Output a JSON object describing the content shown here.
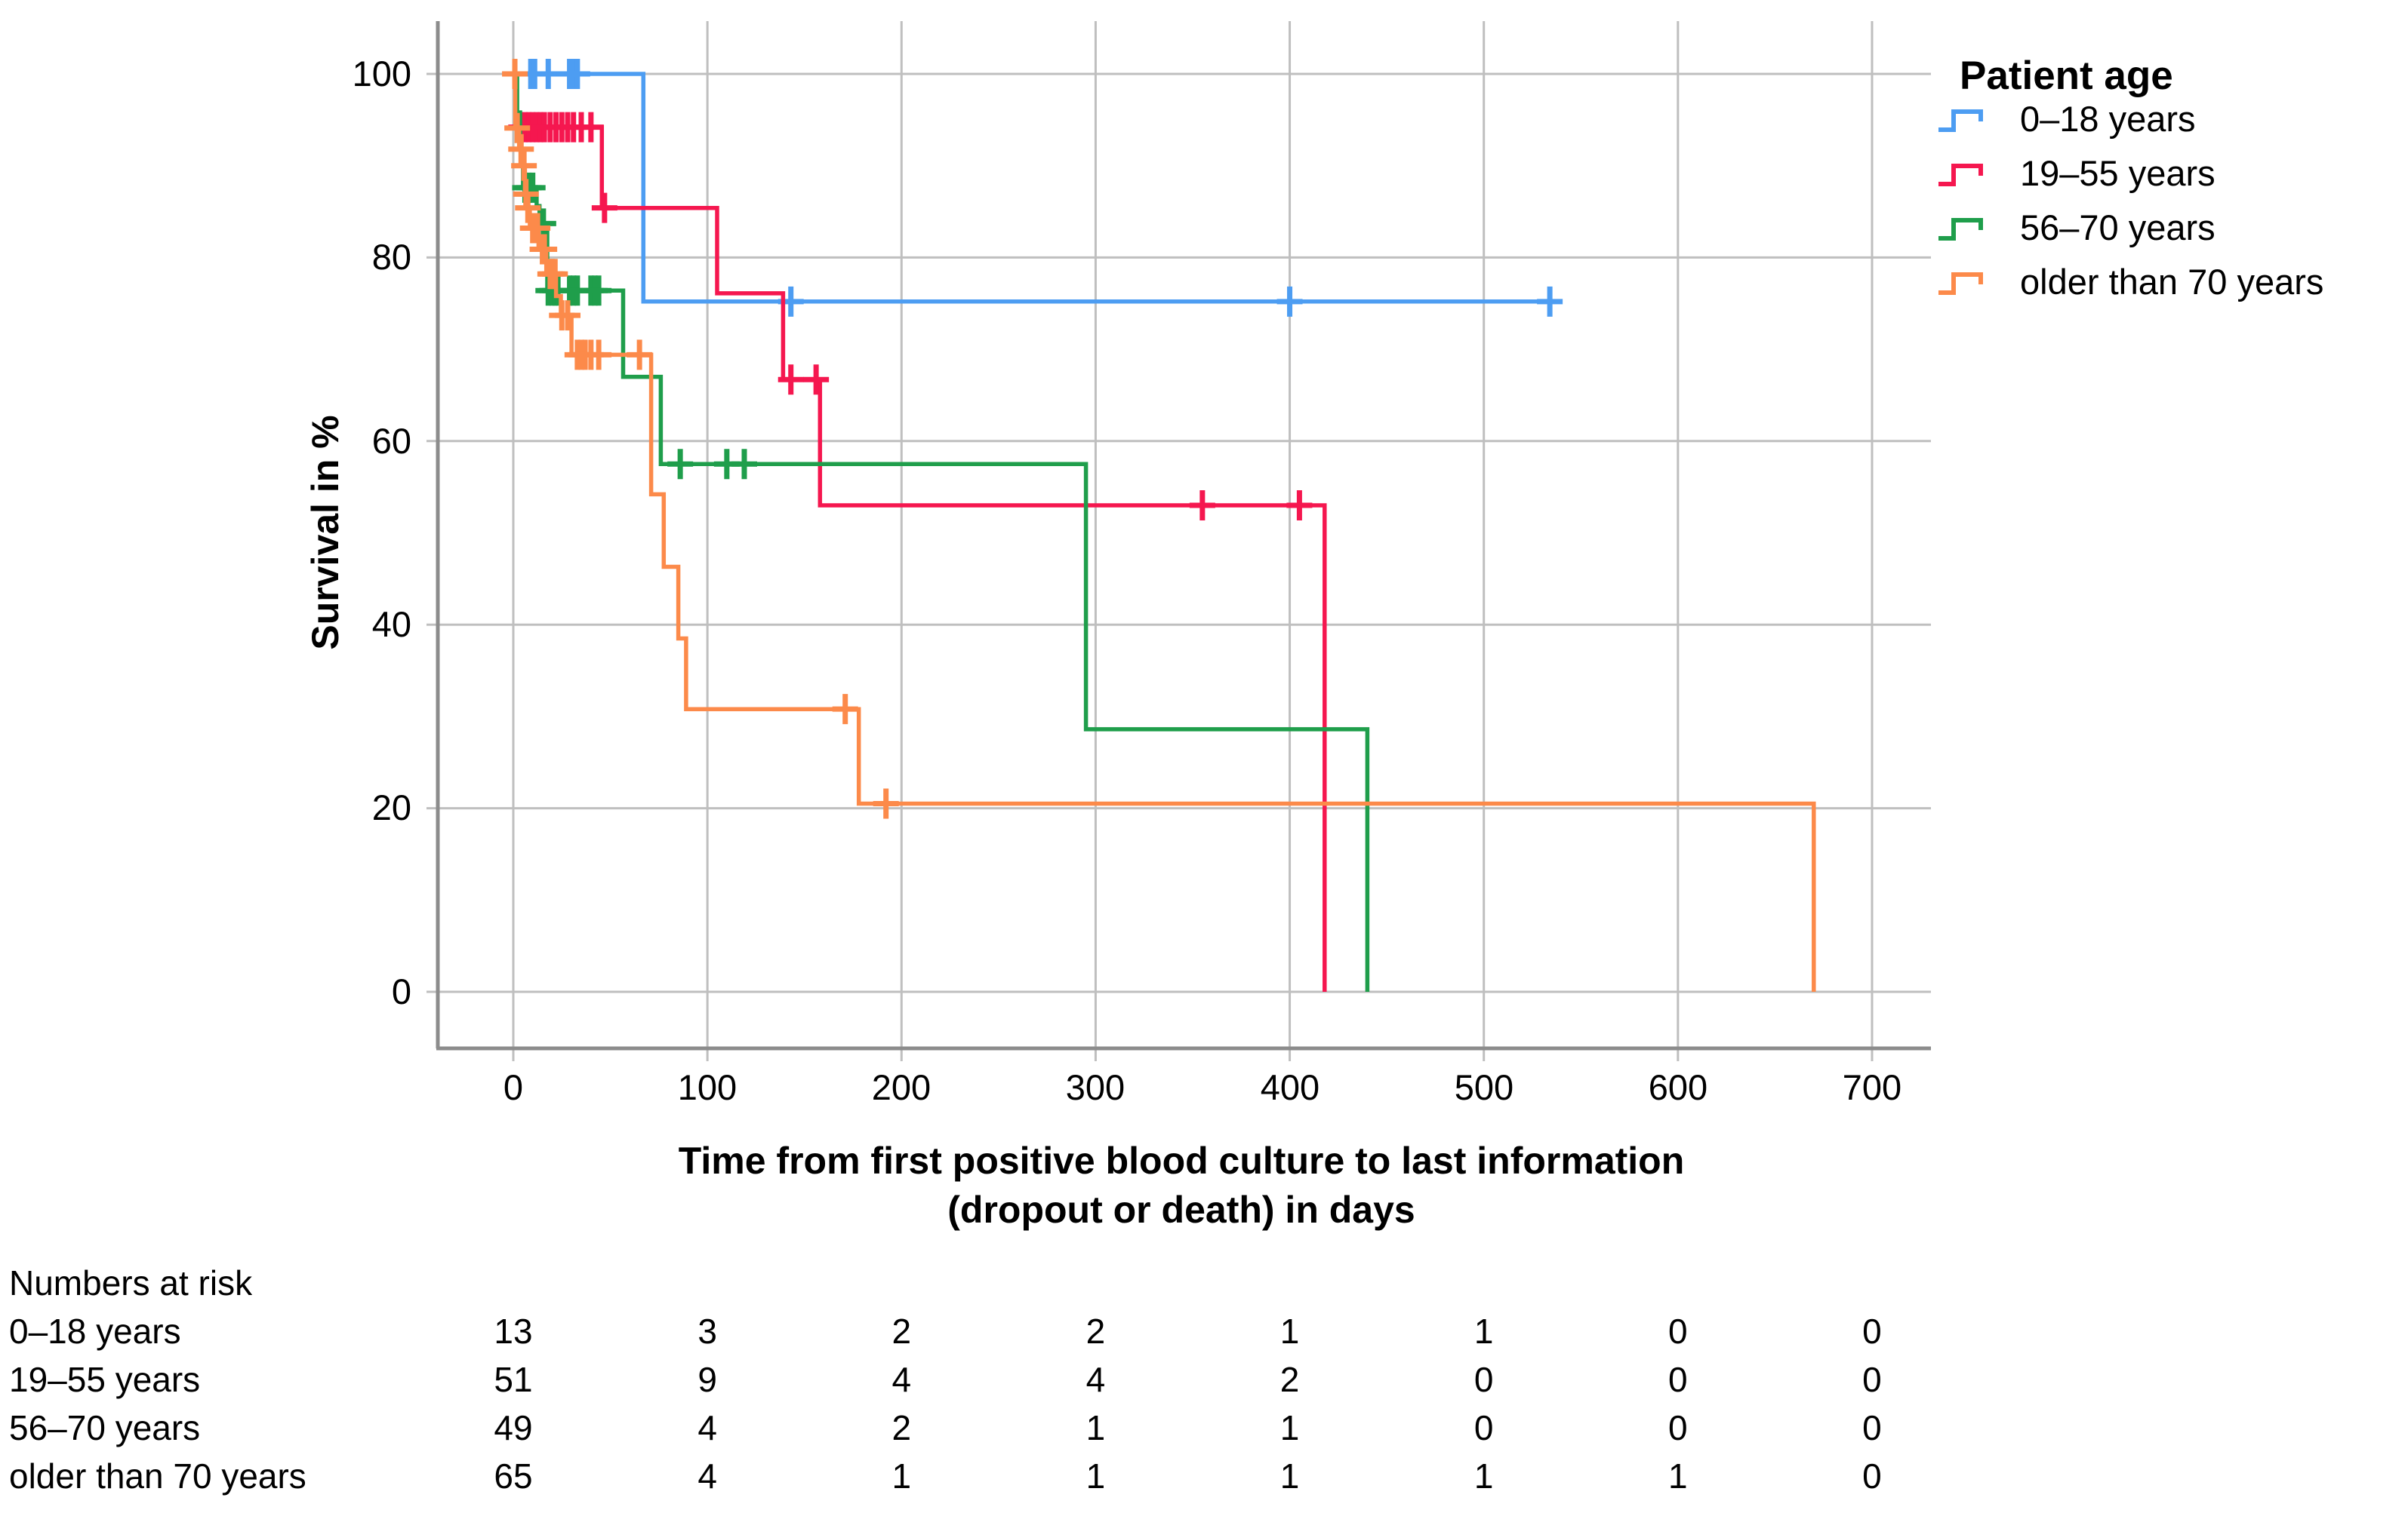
{
  "chart_data": {
    "type": "line",
    "subtype": "kaplan-meier-step-curves",
    "title": "",
    "ylabel": "Survival in %",
    "xlabel_line1": "Time from first positive blood culture to last information",
    "xlabel_line2": "(dropout or death) in days",
    "xlim": [
      0,
      700
    ],
    "ylim": [
      0,
      100
    ],
    "grid": true,
    "legend_position": "top-right",
    "xticks": [
      0,
      100,
      200,
      300,
      400,
      500,
      600,
      700
    ],
    "xtick_labels": [
      "0",
      "100",
      "200",
      "300",
      "400",
      "500",
      "600",
      "700"
    ],
    "yticks": [
      100,
      80,
      60,
      40,
      20,
      0
    ],
    "ytick_labels": [
      "100",
      "80",
      "60",
      "40",
      "20",
      "0"
    ],
    "legend_title": "Patient age",
    "series": [
      {
        "name": "0–18 years",
        "color": "#4d9df2",
        "steps": [
          [
            0,
            100
          ],
          [
            67,
            100
          ],
          [
            67,
            75.2
          ],
          [
            534,
            75.2
          ]
        ],
        "censors": [
          [
            9,
            100
          ],
          [
            11,
            100
          ],
          [
            18,
            100
          ],
          [
            29,
            100
          ],
          [
            31,
            100
          ],
          [
            33,
            100
          ],
          [
            143,
            75.2
          ],
          [
            400,
            75.2
          ],
          [
            534,
            75.2
          ]
        ]
      },
      {
        "name": "19–55 years",
        "color": "#f5174f",
        "steps": [
          [
            0,
            100
          ],
          [
            1.5,
            100
          ],
          [
            1.5,
            94.2
          ],
          [
            45.6,
            94.2
          ],
          [
            45.6,
            85.4
          ],
          [
            105,
            85.4
          ],
          [
            105,
            76.1
          ],
          [
            139,
            76.1
          ],
          [
            139,
            66.7
          ],
          [
            158,
            66.7
          ],
          [
            158,
            53
          ],
          [
            418,
            53
          ],
          [
            418,
            0
          ]
        ],
        "censors": [
          [
            4,
            94.2
          ],
          [
            6,
            94.2
          ],
          [
            8,
            94.2
          ],
          [
            10,
            94.2
          ],
          [
            12,
            94.2
          ],
          [
            14,
            94.2
          ],
          [
            16,
            94.2
          ],
          [
            19,
            94.2
          ],
          [
            22,
            94.2
          ],
          [
            25,
            94.2
          ],
          [
            28,
            94.2
          ],
          [
            31,
            94.2
          ],
          [
            35,
            94.2
          ],
          [
            40,
            94.2
          ],
          [
            47,
            85.4
          ],
          [
            143,
            66.7
          ],
          [
            156,
            66.7
          ],
          [
            355,
            53
          ],
          [
            405,
            53
          ]
        ]
      },
      {
        "name": "56–70 years",
        "color": "#1f9e4b",
        "steps": [
          [
            0,
            100
          ],
          [
            2,
            100
          ],
          [
            2,
            95.8
          ],
          [
            3.5,
            95.8
          ],
          [
            3.5,
            91.8
          ],
          [
            5,
            91.8
          ],
          [
            5,
            87.6
          ],
          [
            12,
            87.6
          ],
          [
            12,
            85.6
          ],
          [
            13.5,
            85.6
          ],
          [
            13.5,
            83.7
          ],
          [
            17.5,
            83.7
          ],
          [
            17.5,
            76.4
          ],
          [
            56.6,
            76.4
          ],
          [
            56.6,
            67
          ],
          [
            76,
            67
          ],
          [
            76,
            57.5
          ],
          [
            295,
            57.5
          ],
          [
            295,
            28.6
          ],
          [
            440,
            28.6
          ],
          [
            440,
            0
          ]
        ],
        "censors": [
          [
            6,
            87.6
          ],
          [
            8,
            87.6
          ],
          [
            10,
            87.6
          ],
          [
            15.5,
            83.7
          ],
          [
            18,
            76.4
          ],
          [
            20,
            76.4
          ],
          [
            21.5,
            76.4
          ],
          [
            23,
            76.4
          ],
          [
            29,
            76.4
          ],
          [
            31,
            76.4
          ],
          [
            33,
            76.4
          ],
          [
            40,
            76.4
          ],
          [
            42,
            76.4
          ],
          [
            44,
            76.4
          ],
          [
            86,
            57.5
          ],
          [
            110,
            57.5
          ],
          [
            119,
            57.5
          ]
        ]
      },
      {
        "name": "older than 70 years",
        "color": "#fc8a4a",
        "steps": [
          [
            0,
            100
          ],
          [
            1,
            100
          ],
          [
            1,
            94.1
          ],
          [
            3,
            94.1
          ],
          [
            3,
            91.8
          ],
          [
            5,
            91.8
          ],
          [
            5,
            90
          ],
          [
            6,
            90
          ],
          [
            6,
            86.9
          ],
          [
            7,
            86.9
          ],
          [
            7,
            85.4
          ],
          [
            8.5,
            85.4
          ],
          [
            8.5,
            83.2
          ],
          [
            13,
            83.2
          ],
          [
            13,
            80.9
          ],
          [
            17,
            80.9
          ],
          [
            17,
            78.2
          ],
          [
            22,
            78.2
          ],
          [
            22,
            75.8
          ],
          [
            24.5,
            75.8
          ],
          [
            24.5,
            73.7
          ],
          [
            30,
            73.7
          ],
          [
            30,
            69.4
          ],
          [
            71,
            69.4
          ],
          [
            71,
            54.2
          ],
          [
            77.5,
            54.2
          ],
          [
            77.5,
            46.3
          ],
          [
            85,
            46.3
          ],
          [
            85,
            38.5
          ],
          [
            89,
            38.5
          ],
          [
            89,
            30.8
          ],
          [
            178,
            30.8
          ],
          [
            178,
            20.5
          ],
          [
            670,
            20.5
          ],
          [
            670,
            0
          ]
        ],
        "censors": [
          [
            0.8,
            100
          ],
          [
            2,
            94.1
          ],
          [
            4,
            91.8
          ],
          [
            5.5,
            90
          ],
          [
            6.5,
            86.9
          ],
          [
            7.5,
            85.4
          ],
          [
            10,
            83.2
          ],
          [
            11.5,
            83.2
          ],
          [
            12.5,
            83.2
          ],
          [
            15,
            80.9
          ],
          [
            16,
            80.9
          ],
          [
            19,
            78.2
          ],
          [
            20,
            78.2
          ],
          [
            21.5,
            78.2
          ],
          [
            25,
            73.7
          ],
          [
            28,
            73.7
          ],
          [
            33,
            69.4
          ],
          [
            35,
            69.4
          ],
          [
            37,
            69.4
          ],
          [
            40,
            69.4
          ],
          [
            44,
            69.4
          ],
          [
            65,
            69.4
          ],
          [
            171,
            30.8
          ],
          [
            192,
            20.5
          ]
        ]
      }
    ],
    "risk_table": {
      "title": "Numbers at risk",
      "time_points": [
        0,
        100,
        200,
        300,
        400,
        500,
        600,
        700
      ],
      "rows": [
        {
          "label": "0–18 years",
          "values": [
            "13",
            "3",
            "2",
            "2",
            "1",
            "1",
            "0",
            "0"
          ]
        },
        {
          "label": "19–55 years",
          "values": [
            "51",
            "9",
            "4",
            "4",
            "2",
            "0",
            "0",
            "0"
          ]
        },
        {
          "label": "56–70 years",
          "values": [
            "49",
            "4",
            "2",
            "1",
            "1",
            "0",
            "0",
            "0"
          ]
        },
        {
          "label": "older than 70 years",
          "values": [
            "65",
            "4",
            "1",
            "1",
            "1",
            "1",
            "1",
            "0"
          ]
        }
      ]
    }
  },
  "colors": {
    "background": "#ffffff",
    "gridline": "#bfbfbf",
    "axis": "#8c8c8c",
    "text": "#000000"
  }
}
